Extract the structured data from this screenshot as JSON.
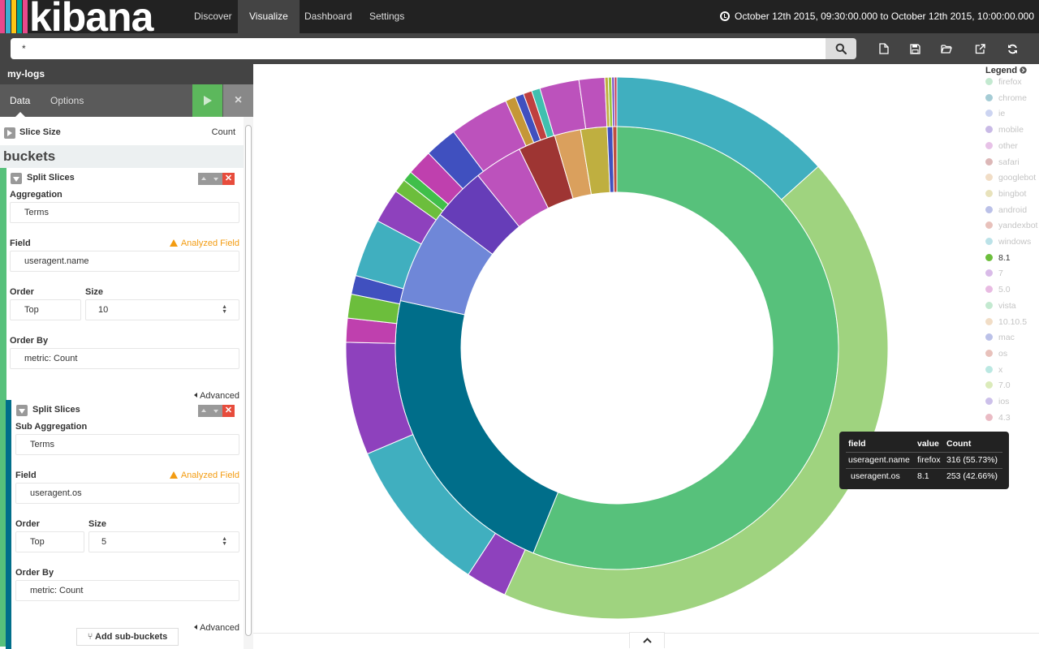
{
  "app": {
    "logo": "kibana"
  },
  "nav": {
    "tabs": [
      {
        "label": "Discover"
      },
      {
        "label": "Visualize",
        "active": true
      },
      {
        "label": "Dashboard"
      },
      {
        "label": "Settings"
      }
    ],
    "time_range": "October 12th 2015, 09:30:00.000 to October 12th 2015, 10:00:00.000"
  },
  "search": {
    "value": "*"
  },
  "toolbar": {
    "icons": [
      "new-visualization-icon",
      "save-icon",
      "open-icon",
      "share-icon",
      "refresh-icon"
    ]
  },
  "sidebar": {
    "title": "my-logs",
    "tabs": {
      "data": "Data",
      "options": "Options"
    },
    "metric": {
      "label": "Slice Size",
      "value": "Count"
    },
    "buckets_heading": "buckets",
    "agg1": {
      "header": "Split Slices",
      "aggregation_label": "Aggregation",
      "aggregation_value": "Terms",
      "field_label": "Field",
      "field_warning": "Analyzed Field",
      "field_value": "useragent.name",
      "order_label": "Order",
      "order_value": "Top",
      "size_label": "Size",
      "size_value": "10",
      "order_by_label": "Order By",
      "order_by_value": "metric: Count",
      "advanced": "Advanced"
    },
    "agg2": {
      "header": "Split Slices",
      "aggregation_label": "Sub Aggregation",
      "aggregation_value": "Terms",
      "field_label": "Field",
      "field_warning": "Analyzed Field",
      "field_value": "useragent.os",
      "order_label": "Order",
      "order_value": "Top",
      "size_label": "Size",
      "size_value": "5",
      "order_by_label": "Order By",
      "order_by_value": "metric: Count",
      "advanced": "Advanced"
    },
    "add_sub_buckets": "Add sub-buckets"
  },
  "legend": {
    "title": "Legend",
    "items": [
      {
        "label": "firefox",
        "color": "#57c17b",
        "faded": true
      },
      {
        "label": "chrome",
        "color": "#006e8a",
        "faded": true
      },
      {
        "label": "ie",
        "color": "#6f87d8",
        "faded": true
      },
      {
        "label": "mobile",
        "color": "#663db8",
        "faded": true
      },
      {
        "label": "other",
        "color": "#bc52bc",
        "faded": true
      },
      {
        "label": "safari",
        "color": "#9e3533",
        "faded": true
      },
      {
        "label": "googlebot",
        "color": "#daa05d",
        "faded": true
      },
      {
        "label": "bingbot",
        "color": "#bfaf40",
        "faded": true
      },
      {
        "label": "android",
        "color": "#4050bf",
        "faded": true
      },
      {
        "label": "yandexbot",
        "color": "#bf5040",
        "faded": true
      },
      {
        "label": "windows",
        "color": "#40afbf",
        "faded": true
      },
      {
        "label": "8.1",
        "color": "#6cbe3c",
        "faded": false
      },
      {
        "label": "7",
        "color": "#9440bf",
        "faded": true
      },
      {
        "label": "5.0",
        "color": "#bf40ae",
        "faded": true
      },
      {
        "label": "vista",
        "color": "#57c17b",
        "faded": true
      },
      {
        "label": "10.10.5",
        "color": "#daa05d",
        "faded": true
      },
      {
        "label": "mac",
        "color": "#4050bf",
        "faded": true
      },
      {
        "label": "os",
        "color": "#bf5040",
        "faded": true
      },
      {
        "label": "x",
        "color": "#40bfaf",
        "faded": true
      },
      {
        "label": "7.0",
        "color": "#9bc73c",
        "faded": true
      },
      {
        "label": "ios",
        "color": "#6f4cc5",
        "faded": true
      },
      {
        "label": "4.3",
        "color": "#c4405a",
        "faded": true
      }
    ]
  },
  "tooltip": {
    "headers": [
      "field",
      "value",
      "Count"
    ],
    "rows": [
      {
        "field": "useragent.name",
        "value": "firefox",
        "count": "316 (55.73%)"
      },
      {
        "field": "useragent.os",
        "value": "8.1",
        "count": "253 (42.66%)"
      }
    ]
  },
  "chart_data": {
    "type": "pie",
    "donut": true,
    "inner": [
      {
        "label": "firefox",
        "value": 55.73,
        "color": "#57c17b"
      },
      {
        "label": "chrome",
        "value": 22.1,
        "color": "#006e8a"
      },
      {
        "label": "ie",
        "value": 6.8,
        "color": "#6f87d8"
      },
      {
        "label": "mobile",
        "value": 3.9,
        "color": "#663db8"
      },
      {
        "label": "other",
        "value": 3.5,
        "color": "#bc52bc"
      },
      {
        "label": "safari",
        "value": 2.7,
        "color": "#9e3533"
      },
      {
        "label": "googlebot",
        "value": 1.9,
        "color": "#daa05d"
      },
      {
        "label": "bingbot",
        "value": 1.9,
        "color": "#bfaf40"
      },
      {
        "label": "android",
        "value": 0.4,
        "color": "#4050bf"
      },
      {
        "label": "yandexbot",
        "value": 0.3,
        "color": "#bf5040"
      }
    ],
    "outer": [
      {
        "parent": "firefox",
        "label": "windows",
        "value": 13.07,
        "color": "#40afbf"
      },
      {
        "parent": "firefox",
        "label": "8.1",
        "value": 42.66,
        "color": "#9fd37f"
      },
      {
        "parent": "chrome",
        "label": "7",
        "value": 2.4,
        "color": "#8e41bd"
      },
      {
        "parent": "chrome",
        "label": "windows",
        "value": 9.2,
        "color": "#40afbf"
      },
      {
        "parent": "chrome",
        "label": "5.0",
        "value": 6.6,
        "color": "#8e41bd"
      },
      {
        "parent": "chrome",
        "label": "vista",
        "value": 1.4,
        "color": "#bf40ae"
      },
      {
        "parent": "chrome",
        "label": "8.1",
        "value": 1.4,
        "color": "#6cbe3c"
      },
      {
        "parent": "chrome",
        "label": "mac",
        "value": 1.1,
        "color": "#4050bf"
      },
      {
        "parent": "ie",
        "label": "windows",
        "value": 3.4,
        "color": "#40afbf"
      },
      {
        "parent": "ie",
        "label": "7",
        "value": 2.0,
        "color": "#8e41bd"
      },
      {
        "parent": "ie",
        "label": "8.1",
        "value": 0.8,
        "color": "#6cbe3c"
      },
      {
        "parent": "ie",
        "label": "vista",
        "value": 0.6,
        "color": "#40bf4a"
      },
      {
        "parent": "mobile",
        "label": "5.0",
        "value": 1.5,
        "color": "#bf40ae"
      },
      {
        "parent": "mobile",
        "label": "ios",
        "value": 1.9,
        "color": "#4050bf"
      },
      {
        "parent": "other",
        "label": "os",
        "value": 3.5,
        "color": "#bc52bc"
      },
      {
        "parent": "safari",
        "label": "10.10.5",
        "value": 0.6,
        "color": "#c59737"
      },
      {
        "parent": "safari",
        "label": "mac",
        "value": 0.5,
        "color": "#4050bf"
      },
      {
        "parent": "safari",
        "label": "x",
        "value": 0.5,
        "color": "#bf4040"
      },
      {
        "parent": "safari",
        "label": "os",
        "value": 0.5,
        "color": "#40bfaf"
      },
      {
        "parent": "googlebot",
        "label": "other",
        "value": 2.3,
        "color": "#bc52bc"
      },
      {
        "parent": "bingbot",
        "label": "other",
        "value": 1.5,
        "color": "#bc52bc"
      },
      {
        "parent": "android",
        "label": "7.0",
        "value": 0.2,
        "color": "#bfaf40"
      },
      {
        "parent": "android",
        "label": "4.3",
        "value": 0.2,
        "color": "#9bc73c"
      },
      {
        "parent": "yandexbot",
        "label": "other",
        "value": 0.15,
        "color": "#6f4cc5"
      },
      {
        "parent": "yandexbot",
        "label": "ios",
        "value": 0.15,
        "color": "#c4405a"
      }
    ]
  }
}
